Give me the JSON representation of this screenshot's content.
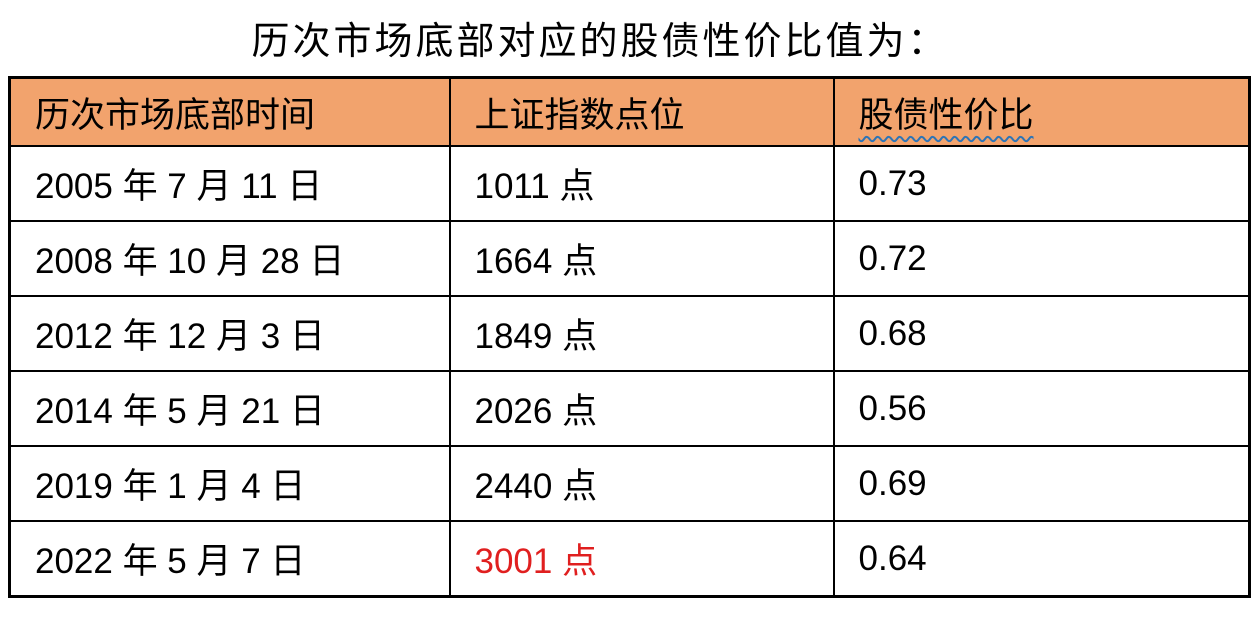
{
  "title": "历次市场底部对应的股债性价比值为：",
  "table": {
    "headers": [
      "历次市场底部时间",
      "上证指数点位",
      "股债性价比"
    ],
    "rows": [
      [
        "2005 年 7 月 11 日",
        "1011 点",
        "0.73"
      ],
      [
        "2008 年 10 月 28 日",
        "1664 点",
        "0.72"
      ],
      [
        "2012 年 12 月 3 日",
        "1849 点",
        "0.68"
      ],
      [
        "2014 年 5 月 21 日",
        "2026 点",
        "0.56"
      ],
      [
        "2019 年 1 月 4 日",
        "2440 点",
        "0.69"
      ],
      [
        "2022 年 5 月 7 日",
        "3001 点",
        "0.64"
      ]
    ],
    "highlight": {
      "row": 5,
      "column": 1,
      "color": "#E01F1F",
      "reason": "current index level shown in red"
    }
  },
  "colors": {
    "header_background": "#F2A36D",
    "border": "#000000",
    "text": "#000000",
    "highlight_red": "#E01F1F",
    "squiggle_blue": "#2E74B5"
  }
}
